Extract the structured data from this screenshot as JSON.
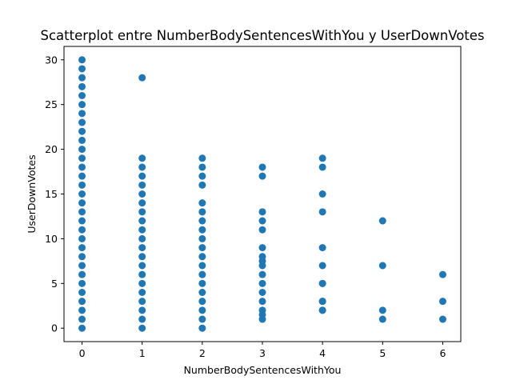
{
  "chart_data": {
    "type": "scatter",
    "title": "Scatterplot entre NumberBodySentencesWithYou y UserDownVotes",
    "xlabel": "NumberBodySentencesWithYou",
    "ylabel": "UserDownVotes",
    "xlim": [
      -0.3,
      6.3
    ],
    "ylim": [
      -1.5,
      31.5
    ],
    "xticks": [
      0,
      1,
      2,
      3,
      4,
      5,
      6
    ],
    "yticks": [
      0,
      5,
      10,
      15,
      20,
      25,
      30
    ],
    "grid": false,
    "legend": "none",
    "marker_color": "#1f77b4",
    "series": [
      {
        "x": [
          0,
          0,
          0,
          0,
          0,
          0,
          0,
          0,
          0,
          0,
          0,
          0,
          0,
          0,
          0,
          0,
          0,
          0,
          0,
          0,
          0,
          0,
          0,
          0,
          0,
          0,
          0,
          0,
          0,
          0,
          0,
          1,
          1,
          1,
          1,
          1,
          1,
          1,
          1,
          1,
          1,
          1,
          1,
          1,
          1,
          1,
          1,
          1,
          1,
          1,
          1,
          1,
          2,
          2,
          2,
          2,
          2,
          2,
          2,
          2,
          2,
          2,
          2,
          2,
          2,
          2,
          2,
          2,
          2,
          2,
          2,
          3,
          3,
          3,
          3,
          3,
          3,
          3,
          3,
          3,
          3,
          3,
          3,
          3,
          3,
          3,
          3,
          4,
          4,
          4,
          4,
          4,
          4,
          4,
          4,
          4,
          4,
          4,
          4,
          5,
          5,
          5,
          5,
          6,
          6,
          6
        ],
        "y": [
          0,
          1,
          2,
          3,
          4,
          5,
          6,
          7,
          8,
          9,
          10,
          11,
          12,
          13,
          14,
          15,
          16,
          17,
          18,
          19,
          20,
          21,
          22,
          23,
          24,
          25,
          26,
          27,
          28,
          29,
          30,
          0,
          1,
          2,
          3,
          4,
          5,
          6,
          7,
          8,
          9,
          10,
          11,
          12,
          13,
          14,
          15,
          16,
          17,
          18,
          19,
          28,
          0,
          1,
          2,
          3,
          4,
          5,
          6,
          7,
          8,
          9,
          10,
          11,
          12,
          13,
          14,
          16,
          17,
          18,
          19,
          1,
          1.5,
          2,
          3,
          4,
          5,
          6,
          7,
          7.5,
          8,
          9,
          11,
          12,
          13,
          17,
          18,
          2,
          3,
          5,
          7,
          9,
          13,
          15,
          18,
          19,
          2,
          3,
          5,
          1,
          2,
          7,
          12,
          1,
          3,
          6
        ]
      }
    ]
  }
}
